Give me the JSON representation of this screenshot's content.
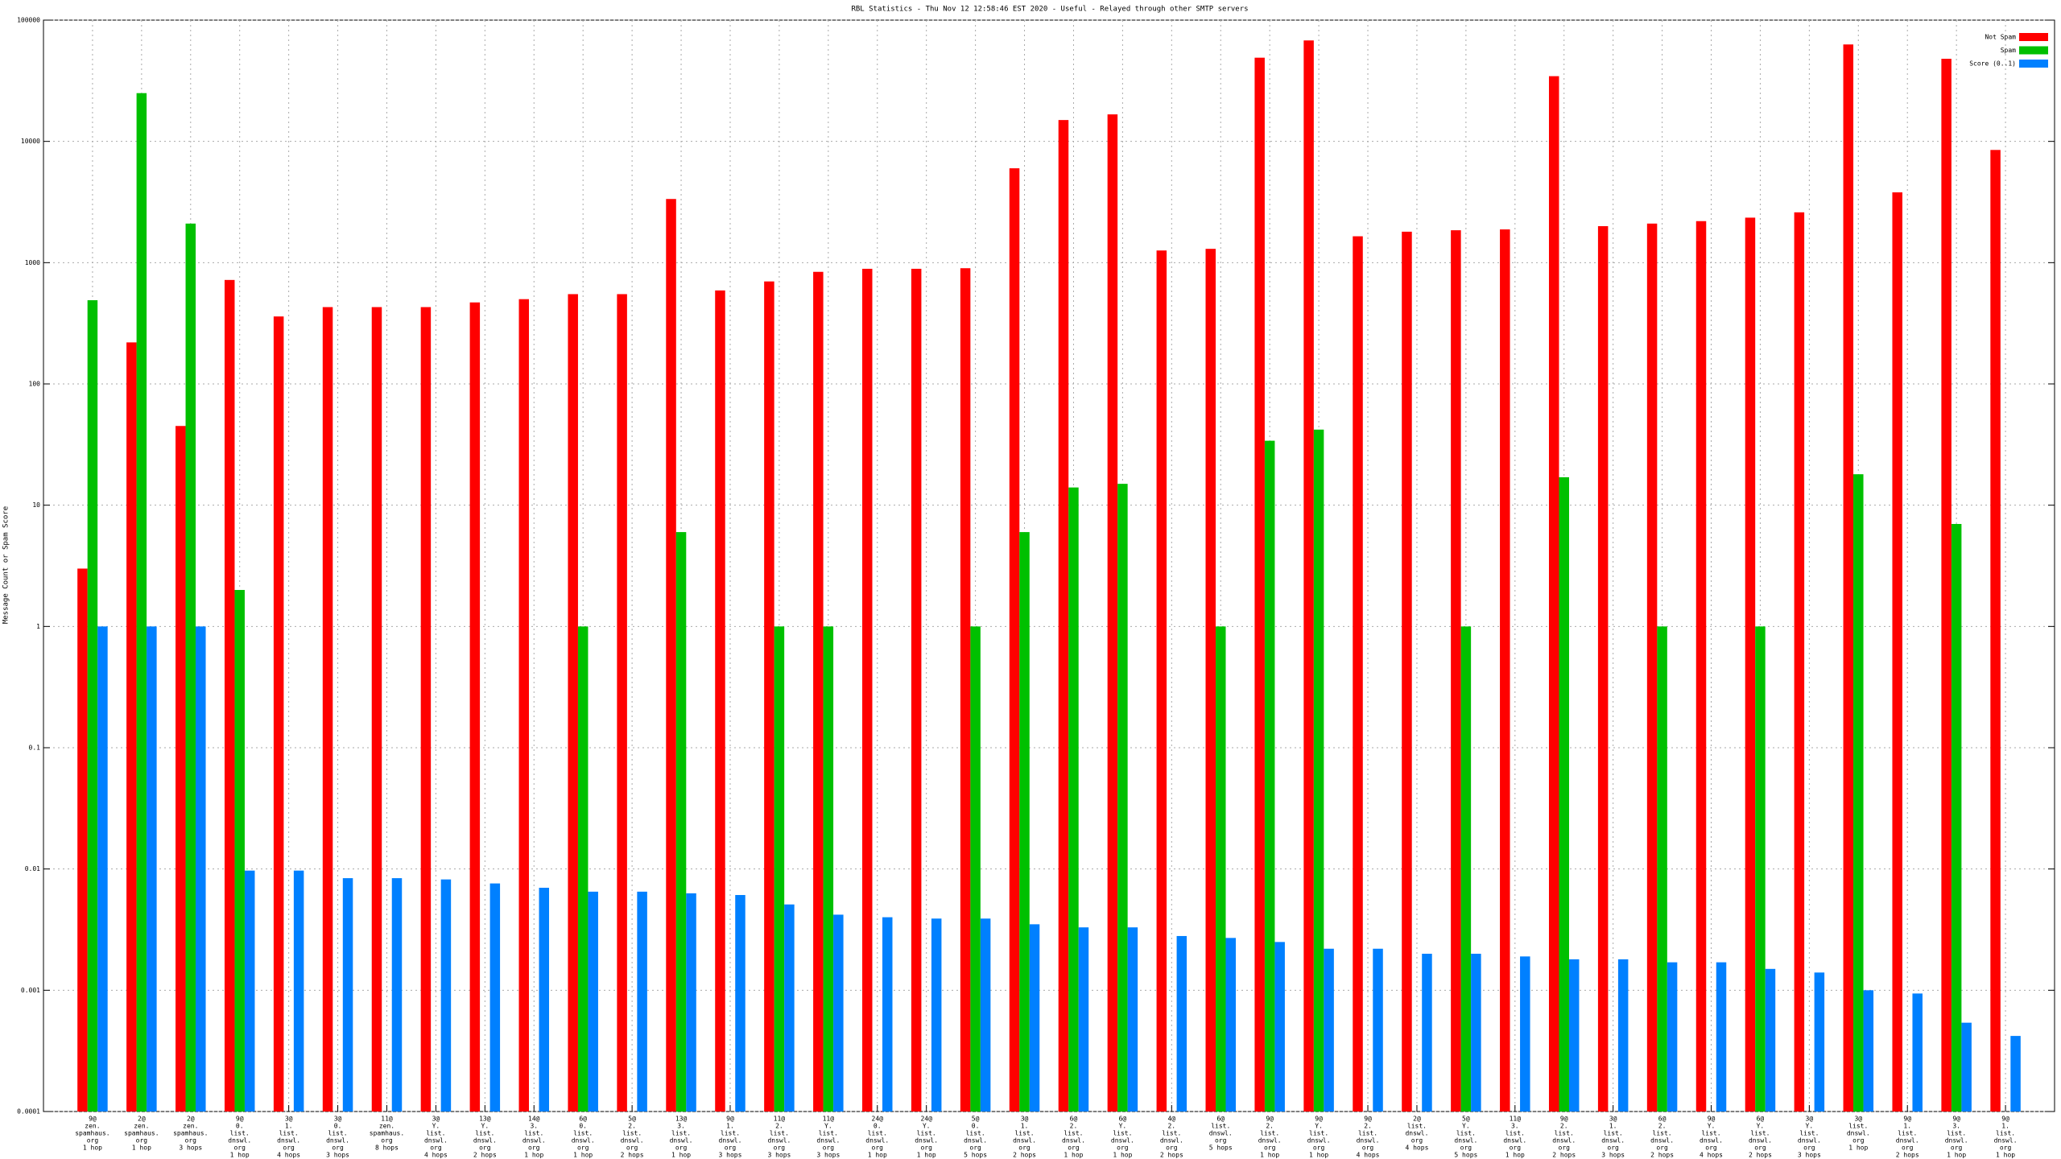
{
  "chart_data": {
    "type": "bar",
    "log_scale": true,
    "grid": true,
    "legend": "top-right",
    "title": "RBL Statistics - Thu Nov 12 12:58:46 EST 2020 - Useful - Relayed through other SMTP servers",
    "y_label": "Message Count or Spam Score",
    "ylim": [
      0.0001,
      100000
    ],
    "yticks": [
      0.0001,
      0.001,
      0.01,
      0.1,
      1,
      10,
      100,
      1000,
      10000,
      100000
    ],
    "categories": [
      [
        "9@",
        "zen.",
        "spamhaus.",
        "org",
        "1 hop"
      ],
      [
        "2@",
        "zen.",
        "spamhaus.",
        "org",
        "1 hop"
      ],
      [
        "2@",
        "zen.",
        "spamhaus.",
        "org",
        "3 hops"
      ],
      [
        "9@",
        "0.",
        "list.",
        "dnswl.",
        "org",
        "1 hop"
      ],
      [
        "3@",
        "1.",
        "list.",
        "dnswl.",
        "org",
        "4 hops"
      ],
      [
        "3@",
        "0.",
        "list.",
        "dnswl.",
        "org",
        "3 hops"
      ],
      [
        "11@",
        "zen.",
        "spamhaus.",
        "org",
        "8 hops"
      ],
      [
        "3@",
        "Y.",
        "list.",
        "dnswl.",
        "org",
        "4 hops"
      ],
      [
        "13@",
        "Y.",
        "list.",
        "dnswl.",
        "org",
        "2 hops"
      ],
      [
        "14@",
        "3.",
        "list.",
        "dnswl.",
        "org",
        "1 hop"
      ],
      [
        "6@",
        "0.",
        "list.",
        "dnswl.",
        "org",
        "1 hop"
      ],
      [
        "5@",
        "2.",
        "list.",
        "dnswl.",
        "org",
        "2 hops"
      ],
      [
        "13@",
        "3.",
        "list.",
        "dnswl.",
        "org",
        "1 hop"
      ],
      [
        "9@",
        "1.",
        "list.",
        "dnswl.",
        "org",
        "3 hops"
      ],
      [
        "11@",
        "2.",
        "list.",
        "dnswl.",
        "org",
        "3 hops"
      ],
      [
        "11@",
        "Y.",
        "list.",
        "dnswl.",
        "org",
        "3 hops"
      ],
      [
        "24@",
        "0.",
        "list.",
        "dnswl.",
        "org",
        "1 hop"
      ],
      [
        "24@",
        "Y.",
        "list.",
        "dnswl.",
        "org",
        "1 hop"
      ],
      [
        "5@",
        "0.",
        "list.",
        "dnswl.",
        "org",
        "5 hops"
      ],
      [
        "3@",
        "1.",
        "list.",
        "dnswl.",
        "org",
        "2 hops"
      ],
      [
        "6@",
        "2.",
        "list.",
        "dnswl.",
        "org",
        "1 hop"
      ],
      [
        "6@",
        "Y.",
        "list.",
        "dnswl.",
        "org",
        "1 hop"
      ],
      [
        "4@",
        "2.",
        "list.",
        "dnswl.",
        "org",
        "2 hops"
      ],
      [
        "6@",
        "list.",
        "dnswl.",
        "org",
        "5 hops"
      ],
      [
        "9@",
        "2.",
        "list.",
        "dnswl.",
        "org",
        "1 hop"
      ],
      [
        "9@",
        "Y.",
        "list.",
        "dnswl.",
        "org",
        "1 hop"
      ],
      [
        "9@",
        "2.",
        "list.",
        "dnswl.",
        "org",
        "4 hops"
      ],
      [
        "2@",
        "list.",
        "dnswl.",
        "org",
        "4 hops"
      ],
      [
        "5@",
        "Y.",
        "list.",
        "dnswl.",
        "org",
        "5 hops"
      ],
      [
        "11@",
        "3.",
        "list.",
        "dnswl.",
        "org",
        "1 hop"
      ],
      [
        "9@",
        "2.",
        "list.",
        "dnswl.",
        "org",
        "2 hops"
      ],
      [
        "3@",
        "1.",
        "list.",
        "dnswl.",
        "org",
        "3 hops"
      ],
      [
        "6@",
        "2.",
        "list.",
        "dnswl.",
        "org",
        "2 hops"
      ],
      [
        "9@",
        "Y.",
        "list.",
        "dnswl.",
        "org",
        "4 hops"
      ],
      [
        "6@",
        "Y.",
        "list.",
        "dnswl.",
        "org",
        "2 hops"
      ],
      [
        "3@",
        "Y.",
        "list.",
        "dnswl.",
        "org",
        "3 hops"
      ],
      [
        "3@",
        "list.",
        "dnswl.",
        "org",
        "1 hop"
      ],
      [
        "9@",
        "1.",
        "list.",
        "dnswl.",
        "org",
        "2 hops"
      ],
      [
        "9@",
        "3.",
        "list.",
        "dnswl.",
        "org",
        "1 hop"
      ],
      [
        "9@",
        "1.",
        "list.",
        "dnswl.",
        "org",
        "1 hop"
      ]
    ],
    "series": [
      {
        "name": "Not Spam",
        "color": "#ff0000",
        "values": [
          3,
          220,
          45,
          720,
          360,
          430,
          430,
          430,
          470,
          500,
          550,
          550,
          3350,
          590,
          700,
          840,
          890,
          890,
          900,
          6000,
          15000,
          16700,
          1260,
          1300,
          49000,
          68000,
          1650,
          1800,
          1850,
          1880,
          34500,
          2000,
          2100,
          2200,
          2350,
          2600,
          63000,
          3800,
          48000,
          8500
        ]
      },
      {
        "name": "Spam",
        "color": "#00c000",
        "values": [
          490,
          25000,
          2100,
          2,
          null,
          null,
          null,
          null,
          null,
          null,
          1,
          null,
          6,
          null,
          1,
          1,
          null,
          null,
          1,
          6,
          14,
          15,
          null,
          1,
          34,
          42,
          null,
          null,
          1,
          null,
          17,
          null,
          1,
          null,
          1,
          null,
          18,
          null,
          7,
          null
        ]
      },
      {
        "name": "Score (0..1)",
        "color": "#0080ff",
        "values": [
          1,
          1,
          1,
          0.0097,
          0.0097,
          0.0084,
          0.0084,
          0.0082,
          0.0076,
          0.007,
          0.0065,
          0.0065,
          0.0063,
          0.0061,
          0.0051,
          0.0042,
          0.004,
          0.0039,
          0.0039,
          0.0035,
          0.0033,
          0.0033,
          0.0028,
          0.0027,
          0.0025,
          0.0022,
          0.0022,
          0.002,
          0.002,
          0.0019,
          0.0018,
          0.0018,
          0.0017,
          0.0017,
          0.0015,
          0.0014,
          0.001,
          0.00094,
          0.00054,
          0.00042
        ]
      }
    ]
  }
}
